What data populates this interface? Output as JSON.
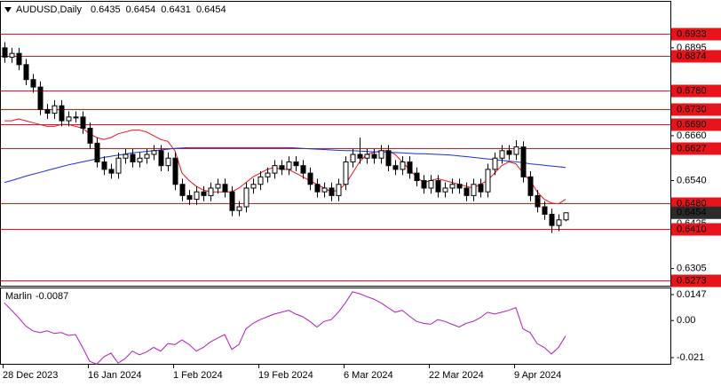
{
  "chart_data": {
    "type": "candlestick",
    "title": "AUDUSD,Daily",
    "categories": [
      "28 Dec 2023",
      null,
      null,
      null,
      null,
      null,
      null,
      null,
      null,
      null,
      null,
      null,
      "16 Jan 2024",
      null,
      null,
      null,
      null,
      null,
      null,
      null,
      null,
      null,
      null,
      null,
      "1 Feb 2024",
      null,
      null,
      null,
      null,
      null,
      null,
      null,
      null,
      null,
      null,
      null,
      "19 Feb 2024",
      null,
      null,
      null,
      null,
      null,
      null,
      null,
      null,
      null,
      null,
      null,
      "6 Mar 2024",
      null,
      null,
      null,
      null,
      null,
      null,
      null,
      null,
      null,
      null,
      null,
      "22 Mar 2024",
      null,
      null,
      null,
      null,
      null,
      null,
      null,
      null,
      null,
      null,
      null,
      "9 Apr 2024",
      null,
      null,
      null,
      null,
      null,
      null,
      null
    ],
    "open": [
      0.6895,
      0.687,
      0.688,
      0.685,
      0.681,
      0.679,
      0.673,
      0.672,
      0.674,
      0.67,
      0.671,
      0.671,
      0.668,
      0.664,
      0.659,
      0.657,
      0.656,
      0.66,
      0.661,
      0.659,
      0.66,
      0.661,
      0.662,
      0.658,
      0.66,
      0.653,
      0.65,
      0.649,
      0.651,
      0.65,
      0.652,
      0.653,
      0.651,
      0.646,
      0.647,
      0.652,
      0.653,
      0.655,
      0.656,
      0.658,
      0.657,
      0.659,
      0.658,
      0.656,
      0.653,
      0.651,
      0.652,
      0.65,
      0.653,
      0.659,
      0.661,
      0.66,
      0.661,
      0.66,
      0.662,
      0.658,
      0.657,
      0.659,
      0.656,
      0.654,
      0.652,
      0.654,
      0.651,
      0.652,
      0.653,
      0.652,
      0.65,
      0.653,
      0.651,
      0.657,
      0.66,
      0.662,
      0.661,
      0.663,
      0.655,
      0.65,
      0.647,
      0.645,
      0.642,
      0.6435
    ],
    "high": [
      0.691,
      0.6895,
      0.6895,
      0.6865,
      0.6825,
      0.6805,
      0.6745,
      0.6755,
      0.6755,
      0.6725,
      0.6725,
      0.6725,
      0.6695,
      0.6655,
      0.6605,
      0.6585,
      0.6615,
      0.6625,
      0.6625,
      0.6615,
      0.6625,
      0.6635,
      0.6635,
      0.6615,
      0.6615,
      0.6545,
      0.6515,
      0.6525,
      0.6525,
      0.6535,
      0.6545,
      0.6545,
      0.6525,
      0.6485,
      0.6535,
      0.6545,
      0.6565,
      0.6575,
      0.6595,
      0.6595,
      0.6605,
      0.6605,
      0.6595,
      0.6575,
      0.6545,
      0.6535,
      0.6535,
      0.6545,
      0.6605,
      0.6625,
      0.6655,
      0.6625,
      0.6625,
      0.6635,
      0.6635,
      0.6595,
      0.6605,
      0.6605,
      0.6575,
      0.6555,
      0.6555,
      0.6555,
      0.6535,
      0.6545,
      0.6545,
      0.6535,
      0.6545,
      0.6545,
      0.6585,
      0.6615,
      0.6635,
      0.6635,
      0.6648,
      0.6645,
      0.6565,
      0.6515,
      0.6485,
      0.6465,
      0.645,
      0.6454
    ],
    "low": [
      0.6855,
      0.6855,
      0.6835,
      0.6795,
      0.6775,
      0.6715,
      0.6705,
      0.6705,
      0.6685,
      0.6685,
      0.6695,
      0.6665,
      0.6625,
      0.6575,
      0.6555,
      0.6545,
      0.6545,
      0.6585,
      0.6575,
      0.6575,
      0.6585,
      0.6595,
      0.6565,
      0.6565,
      0.6515,
      0.6485,
      0.6475,
      0.6475,
      0.6485,
      0.6485,
      0.6505,
      0.6495,
      0.6445,
      0.6445,
      0.6455,
      0.6505,
      0.6515,
      0.6535,
      0.6545,
      0.6555,
      0.6555,
      0.6565,
      0.6545,
      0.6515,
      0.6495,
      0.6495,
      0.6485,
      0.6485,
      0.6515,
      0.6575,
      0.6585,
      0.6585,
      0.6585,
      0.6585,
      0.6565,
      0.6555,
      0.6555,
      0.6545,
      0.6525,
      0.6505,
      0.6505,
      0.6495,
      0.6495,
      0.6505,
      0.6505,
      0.6485,
      0.6485,
      0.6495,
      0.6495,
      0.6555,
      0.6585,
      0.6595,
      0.6595,
      0.6535,
      0.6485,
      0.6455,
      0.6435,
      0.64,
      0.6405,
      0.6431
    ],
    "close": [
      0.687,
      0.688,
      0.685,
      0.681,
      0.679,
      0.673,
      0.672,
      0.674,
      0.67,
      0.671,
      0.671,
      0.668,
      0.664,
      0.659,
      0.657,
      0.656,
      0.66,
      0.661,
      0.659,
      0.66,
      0.661,
      0.662,
      0.658,
      0.66,
      0.653,
      0.65,
      0.649,
      0.651,
      0.65,
      0.652,
      0.653,
      0.651,
      0.646,
      0.647,
      0.652,
      0.653,
      0.655,
      0.656,
      0.658,
      0.657,
      0.659,
      0.658,
      0.656,
      0.653,
      0.651,
      0.652,
      0.65,
      0.653,
      0.659,
      0.661,
      0.66,
      0.661,
      0.66,
      0.662,
      0.658,
      0.657,
      0.659,
      0.656,
      0.654,
      0.652,
      0.654,
      0.651,
      0.652,
      0.653,
      0.652,
      0.65,
      0.653,
      0.651,
      0.657,
      0.66,
      0.662,
      0.661,
      0.663,
      0.655,
      0.65,
      0.647,
      0.645,
      0.642,
      0.6435,
      0.6454
    ],
    "up_color": "#ffffff",
    "down_color": "#000000",
    "overlays": [
      {
        "color": "#e8141c",
        "values": [
          0.67,
          0.67,
          0.6705,
          0.67,
          0.6695,
          0.669,
          0.6685,
          0.6685,
          0.669,
          0.669,
          0.6685,
          0.668,
          0.6665,
          0.6655,
          0.665,
          0.6655,
          0.6665,
          0.667,
          0.6675,
          0.6675,
          0.667,
          0.666,
          0.665,
          0.6645,
          0.662,
          0.656,
          0.654,
          0.6525,
          0.6515,
          0.651,
          0.651,
          0.651,
          0.651,
          0.652,
          0.6535,
          0.655,
          0.656,
          0.657,
          0.6575,
          0.657,
          0.657,
          0.656,
          0.655,
          0.654,
          0.653,
          0.652,
          0.651,
          0.6515,
          0.653,
          0.656,
          0.659,
          0.661,
          0.6615,
          0.662,
          0.662,
          0.661,
          0.659,
          0.657,
          0.655,
          0.6535,
          0.654,
          0.6545,
          0.654,
          0.6535,
          0.653,
          0.6525,
          0.652,
          0.653,
          0.654,
          0.656,
          0.658,
          0.659,
          0.6585,
          0.656,
          0.654,
          0.651,
          0.649,
          0.648,
          0.6478,
          0.649
        ]
      },
      {
        "color": "#1c2fd8",
        "values": [
          0.6535,
          0.654,
          0.6546,
          0.6552,
          0.6557,
          0.6562,
          0.6567,
          0.6572,
          0.6577,
          0.6582,
          0.6586,
          0.659,
          0.6594,
          0.6598,
          0.6602,
          0.6605,
          0.6608,
          0.6611,
          0.6614,
          0.6616,
          0.6618,
          0.662,
          0.6622,
          0.6624,
          0.6626,
          0.6627,
          0.6628,
          0.6628,
          0.6628,
          0.6628,
          0.6628,
          0.6628,
          0.6628,
          0.6628,
          0.6628,
          0.6628,
          0.6628,
          0.6628,
          0.6628,
          0.6628,
          0.6628,
          0.6627,
          0.6626,
          0.6625,
          0.6624,
          0.6623,
          0.6622,
          0.6621,
          0.662,
          0.662,
          0.6619,
          0.6618,
          0.6617,
          0.6617,
          0.6616,
          0.6615,
          0.6614,
          0.6613,
          0.6612,
          0.6612,
          0.6611,
          0.661,
          0.6609,
          0.6608,
          0.6606,
          0.6604,
          0.6602,
          0.66,
          0.6598,
          0.6596,
          0.6594,
          0.6592,
          0.659,
          0.6588,
          0.6585,
          0.6583,
          0.6581,
          0.6579,
          0.6577,
          0.6575
        ]
      }
    ],
    "levels": [
      0.6933,
      0.6874,
      {
        "value": 0.678,
        "label": "0.6780"
      },
      {
        "value": 0.673,
        "label": "0.6730"
      },
      {
        "value": 0.669,
        "label": "0.6690"
      },
      0.6627,
      {
        "value": 0.648,
        "label": "0.6480"
      },
      {
        "value": 0.641,
        "label": "0.6410"
      },
      0.6273
    ],
    "levels_color": "#e8141c",
    "ylim": [
      0.6259,
      0.7018
    ],
    "yticks": [
      0.6895,
      {
        "value": 0.666,
        "label": "0.6660"
      },
      {
        "value": 0.654,
        "label": "0.6540"
      },
      0.6425,
      0.6305
    ],
    "indicator": {
      "name": "Marlin",
      "value": -0.0087,
      "color": "#b01cb8",
      "values": [
        0.01,
        0.0058,
        0.0016,
        -0.0031,
        -0.0058,
        -0.0068,
        -0.0058,
        -0.0073,
        -0.0068,
        -0.0084,
        -0.0079,
        -0.0152,
        -0.0231,
        -0.0247,
        -0.0205,
        -0.0184,
        -0.0241,
        -0.0215,
        -0.0173,
        -0.0194,
        -0.0178,
        -0.0152,
        -0.0173,
        -0.0131,
        -0.0136,
        -0.011,
        -0.0136,
        -0.0173,
        -0.0152,
        -0.0121,
        -0.01,
        -0.0079,
        -0.0163,
        -0.0136,
        -0.0047,
        -0.0016,
        0.0005,
        0.0021,
        0.0037,
        0.0047,
        0.0058,
        0.0037,
        0.0021,
        -0.0005,
        -0.0037,
        -0.0005,
        0.0005,
        0.0047,
        0.01,
        0.0163,
        0.0152,
        0.0136,
        0.0121,
        0.01,
        0.0073,
        0.0047,
        0.0058,
        0.0026,
        -0.0005,
        -0.0016,
        -0.0021,
        0.0005,
        -0.0005,
        -0.0021,
        -0.0037,
        -0.0016,
        -0.0005,
        0.0016,
        0.0047,
        0.0037,
        0.0047,
        0.0058,
        0.0073,
        -0.0047,
        -0.0068,
        -0.0131,
        -0.0152,
        -0.0189,
        -0.0152,
        -0.0087
      ],
      "ylim": [
        -0.0245,
        0.0182
      ],
      "yticks": [
        0.0147,
        {
          "value": 0,
          "label": "0.00"
        },
        -0.021
      ]
    }
  }
}
